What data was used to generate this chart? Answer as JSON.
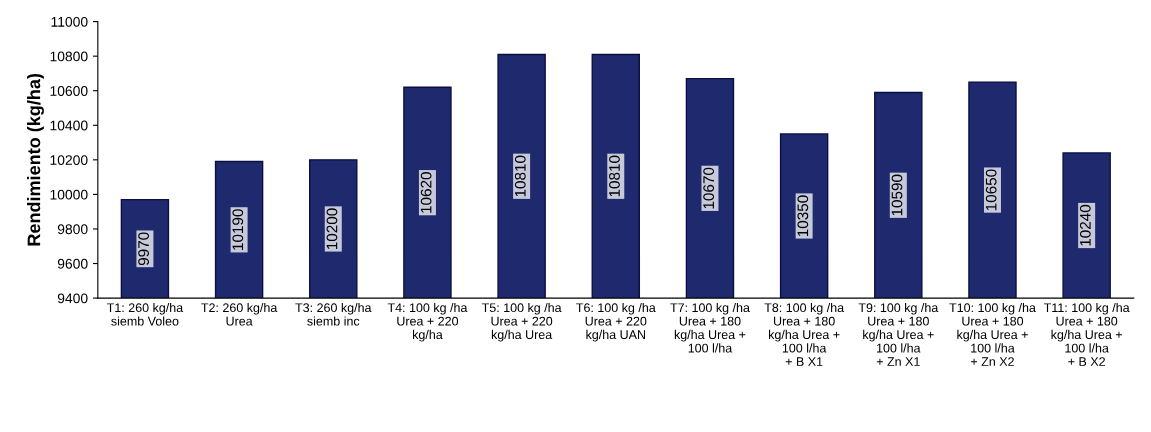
{
  "chart_data": {
    "type": "bar",
    "ylabel": "Rendimiento (kg/ha)",
    "categories": [
      "T1: 260 kg/ha\nsiemb Voleo",
      "T2: 260 kg/ha\nUrea",
      "T3: 260 kg/ha\nsiemb inc",
      "T4: 100 kg /ha\nUrea + 220\nkg/ha",
      "T5: 100 kg /ha\nUrea + 220\nkg/ha Urea",
      "T6: 100 kg /ha\nUrea + 220\nkg/ha UAN",
      "T7: 100 kg /ha\nUrea + 180\nkg/ha Urea +\n100 l/ha",
      "T8: 100 kg /ha\nUrea + 180\nkg/ha Urea +\n100 l/ha\n+ B X1",
      "T9: 100 kg /ha\nUrea + 180\nkg/ha Urea +\n100 l/ha\n+ Zn X1",
      "T10: 100 kg /ha\nUrea + 180\nkg/ha Urea +\n100 l/ha\n+ Zn X2",
      "T11: 100 kg /ha\nUrea + 180\nkg/ha Urea +\n100 l/ha\n+ B X2"
    ],
    "values": [
      9970,
      10190,
      10200,
      10620,
      10810,
      10810,
      10670,
      10350,
      10590,
      10650,
      10240
    ],
    "color": "#1f2a6e",
    "data_labels": true,
    "ylim": [
      9400,
      11000
    ],
    "yticks": [
      9400,
      9600,
      9800,
      10000,
      10200,
      10400,
      10600,
      10800,
      11000
    ],
    "grid": false
  }
}
